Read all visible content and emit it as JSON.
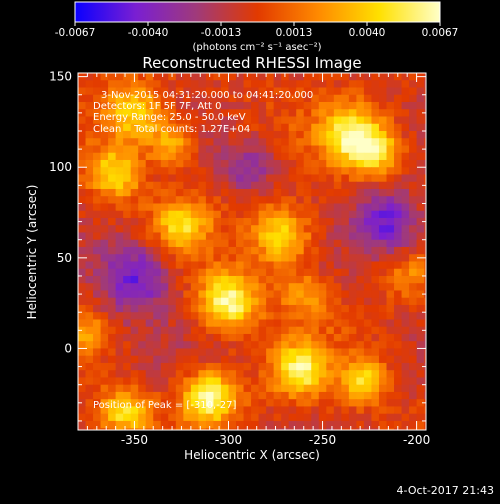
{
  "colorbar": {
    "ticks": [
      "-0.0067",
      "-0.0040",
      "-0.0013",
      "0.0013",
      "0.0040",
      "0.0067"
    ],
    "unit_label": "(photons cm⁻² s⁻¹ asec⁻²)",
    "colors": [
      "#0a00ff",
      "#7a1fd2",
      "#a03a7a",
      "#e23a00",
      "#ff8a00",
      "#ffe000",
      "#ffffc8"
    ]
  },
  "info": {
    "time_line": "3-Nov-2015 04:31:20.000 to 04:41:20.000",
    "detectors_line": "Detectors: 1F 5F 7F, Att 0",
    "energy_line": "Energy Range: 25.0 - 50.0 keV",
    "clean_line": "Clean    Total counts: 1.27E+04",
    "peak_line": "Position of Peak = [-310,-27]"
  },
  "footer": {
    "timestamp": "4-Oct-2017 21:43"
  },
  "chart_data": {
    "type": "heatmap",
    "title": "Reconstructed RHESSI Image",
    "xlabel": "Heliocentric X (arcsec)",
    "ylabel": "Heliocentric Y (arcsec)",
    "xlim": [
      -380,
      -195
    ],
    "ylim": [
      -45,
      152
    ],
    "xticks": [
      -350,
      -300,
      -250,
      -200
    ],
    "yticks": [
      0,
      50,
      100,
      150
    ],
    "value_range": [
      -0.0067,
      0.0067
    ],
    "peak": [
      -310,
      -27
    ],
    "sources": [
      {
        "x": -310,
        "y": -27,
        "sigma": 10,
        "amp": 0.0067
      },
      {
        "x": -300,
        "y": 26,
        "sigma": 11,
        "amp": 0.0066
      },
      {
        "x": -272,
        "y": 62,
        "sigma": 11,
        "amp": 0.0052
      },
      {
        "x": -350,
        "y": 130,
        "sigma": 11,
        "amp": 0.005
      },
      {
        "x": -330,
        "y": 112,
        "sigma": 8,
        "amp": 0.0042
      },
      {
        "x": -360,
        "y": 97,
        "sigma": 10,
        "amp": 0.0048
      },
      {
        "x": -325,
        "y": 68,
        "sigma": 10,
        "amp": 0.0043
      },
      {
        "x": -235,
        "y": 118,
        "sigma": 11,
        "amp": 0.0058
      },
      {
        "x": -222,
        "y": 108,
        "sigma": 9,
        "amp": 0.0048
      },
      {
        "x": -262,
        "y": -12,
        "sigma": 10,
        "amp": 0.0058
      },
      {
        "x": -355,
        "y": -35,
        "sigma": 9,
        "amp": 0.0048
      },
      {
        "x": -228,
        "y": -18,
        "sigma": 8,
        "amp": 0.005
      },
      {
        "x": -260,
        "y": 30,
        "sigma": 9,
        "amp": 0.0028
      },
      {
        "x": -205,
        "y": 40,
        "sigma": 8,
        "amp": 0.0022
      },
      {
        "x": -375,
        "y": 10,
        "sigma": 8,
        "amp": 0.0026
      },
      {
        "x": -350,
        "y": 40,
        "sigma": 14,
        "amp": -0.0045
      },
      {
        "x": -215,
        "y": 70,
        "sigma": 12,
        "amp": -0.0045
      },
      {
        "x": -290,
        "y": 100,
        "sigma": 10,
        "amp": -0.003
      }
    ]
  }
}
